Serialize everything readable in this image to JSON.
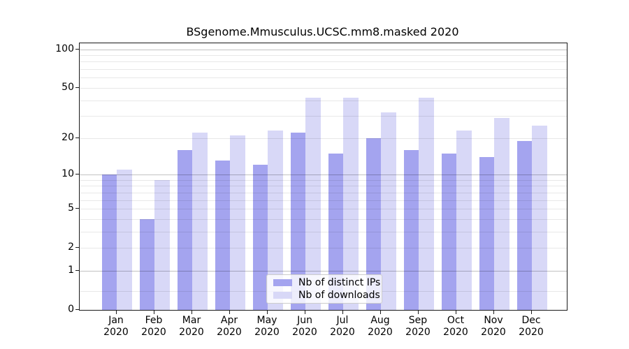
{
  "title": "BSgenome.Mmusculus.UCSC.mm8.masked 2020",
  "chart_data": {
    "type": "bar",
    "title": "BSgenome.Mmusculus.UCSC.mm8.masked 2020",
    "categories": [
      "Jan",
      "Feb",
      "Mar",
      "Apr",
      "May",
      "Jun",
      "Jul",
      "Aug",
      "Sep",
      "Oct",
      "Nov",
      "Dec"
    ],
    "x_sublabel": "2020",
    "series": [
      {
        "name": "Nb of distinct IPs",
        "color": "#a4a4ef",
        "values": [
          10,
          4,
          16,
          13,
          12,
          22,
          15,
          20,
          16,
          15,
          14,
          19
        ]
      },
      {
        "name": "Nb of downloads",
        "color": "#d8d8f7",
        "values": [
          11,
          9,
          22,
          21,
          23,
          42,
          42,
          32,
          42,
          23,
          29,
          25
        ]
      }
    ],
    "yscale": "log1p",
    "ylim": [
      0,
      110
    ],
    "yticks": [
      100,
      50,
      20,
      10,
      5,
      2,
      1,
      0
    ],
    "yticks_minor": [
      0.4,
      3,
      4,
      6,
      7,
      8,
      9,
      30,
      40,
      60,
      70,
      80,
      90
    ],
    "grid": true,
    "legend_position": "lower center"
  },
  "colors": {
    "major_grid": "rgba(0,0,0,0.24)",
    "minor_grid": "rgba(0,0,0,0.09)",
    "axis": "#1a1a1a",
    "text": "#000000"
  }
}
